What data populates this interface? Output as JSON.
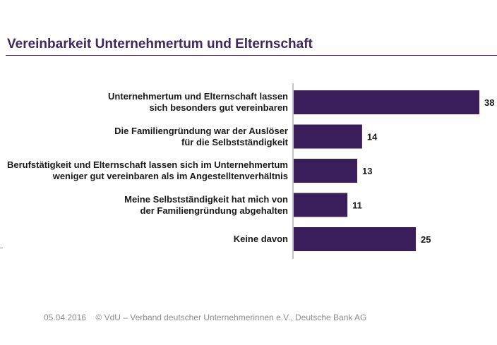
{
  "title": "Vereinbarkeit Unternehmertum und Elternschaft",
  "footer": {
    "date": "05.04.2016",
    "source": "© VdU – Verband deutscher Unternehmerinnen e.V., Deutsche Bank AG"
  },
  "colors": {
    "bar": "#3a1e5c",
    "title": "#3c2a5f",
    "axis": "#888888"
  },
  "chart_data": {
    "type": "bar",
    "orientation": "horizontal",
    "categories": [
      "Unternehmertum und Elternschaft lassen\nsich besonders gut vereinbaren",
      "Die Familiengründung war der Auslöser\nfür die Selbstständigkeit",
      "Berufstätigkeit und Elternschaft lassen sich im Unternehmertum\nweniger gut vereinbaren als im Angestelltenverhältnis",
      "Meine Selbstständigkeit hat mich von\nder Familiengründung abgehalten",
      "Keine davon"
    ],
    "values": [
      38,
      14,
      13,
      11,
      25
    ],
    "xlim": [
      0,
      40
    ],
    "grid": false
  }
}
